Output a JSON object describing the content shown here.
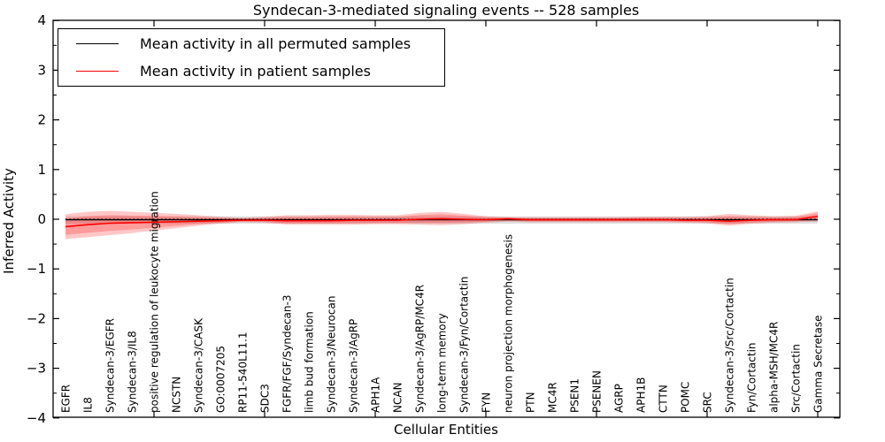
{
  "figure": {
    "title": "Syndecan-3-mediated signaling events -- 528 samples",
    "xlabel": "Cellular Entities",
    "ylabel": "Inferred Activity"
  },
  "legend": {
    "entries": [
      {
        "label": "Mean activity in all permuted samples",
        "color": "#000000"
      },
      {
        "label": "Mean activity in patient samples",
        "color": "#ff0000"
      }
    ]
  },
  "chart_data": {
    "type": "line",
    "title": "Syndecan-3-mediated signaling events -- 528 samples",
    "xlabel": "Cellular Entities",
    "ylabel": "Inferred Activity",
    "ylim": [
      -4,
      4
    ],
    "yticks": [
      4,
      3,
      2,
      1,
      0,
      -1,
      -2,
      -3,
      -4
    ],
    "grid": false,
    "legend_position": "upper left",
    "zero_line": 0,
    "categories": [
      "EGFR",
      "IL8",
      "Syndecan-3/EGFR",
      "Syndecan-3/IL8",
      "positive regulation of leukocyte migration",
      "NCSTN",
      "Syndecan-3/CASK",
      "GO:0007205",
      "RP11-540L11.1",
      "SDC3",
      "FGFR/FGF/Syndecan-3",
      "limb bud formation",
      "Syndecan-3/Neurocan",
      "Syndecan-3/AgRP",
      "APH1A",
      "NCAN",
      "Syndecan-3/AgRP/MC4R",
      "long-term memory",
      "Syndecan-3/Fyn/Cortactin",
      "FYN",
      "neuron projection morphogenesis",
      "PTN",
      "MC4R",
      "PSEN1",
      "PSENEN",
      "AGRP",
      "APH1B",
      "CTTN",
      "POMC",
      "SRC",
      "Syndecan-3/Src/Cortactin",
      "Fyn/Cortactin",
      "alpha-MSH/MC4R",
      "Src/Cortactin",
      "Gamma Secretase"
    ],
    "series": [
      {
        "name": "Mean activity in all permuted samples",
        "color": "#000000",
        "band_color": "rgba(0,0,0,0.12)",
        "values": [
          -0.01,
          -0.01,
          -0.01,
          -0.01,
          -0.01,
          -0.01,
          -0.01,
          -0.01,
          -0.01,
          -0.01,
          -0.01,
          -0.01,
          -0.01,
          -0.01,
          -0.01,
          -0.01,
          -0.01,
          -0.01,
          -0.01,
          -0.01,
          -0.01,
          -0.01,
          -0.01,
          -0.01,
          -0.01,
          -0.01,
          -0.01,
          -0.01,
          -0.01,
          -0.01,
          -0.01,
          -0.01,
          -0.01,
          -0.01,
          -0.01
        ],
        "band_upper": [
          0.06,
          0.06,
          0.06,
          0.06,
          0.06,
          0.06,
          0.06,
          0.06,
          0.06,
          0.06,
          0.06,
          0.06,
          0.06,
          0.06,
          0.06,
          0.06,
          0.06,
          0.06,
          0.06,
          0.06,
          0.06,
          0.06,
          0.06,
          0.06,
          0.06,
          0.06,
          0.06,
          0.06,
          0.06,
          0.06,
          0.06,
          0.06,
          0.06,
          0.06,
          0.06
        ],
        "band_lower": [
          -0.09,
          -0.09,
          -0.09,
          -0.09,
          -0.09,
          -0.09,
          -0.09,
          -0.09,
          -0.09,
          -0.09,
          -0.09,
          -0.09,
          -0.09,
          -0.09,
          -0.09,
          -0.09,
          -0.09,
          -0.09,
          -0.09,
          -0.09,
          -0.09,
          -0.09,
          -0.09,
          -0.09,
          -0.09,
          -0.09,
          -0.09,
          -0.09,
          -0.09,
          -0.09,
          -0.09,
          -0.09,
          -0.09,
          -0.09,
          -0.09
        ]
      },
      {
        "name": "Mean activity in patient samples",
        "color": "#ff0000",
        "band_color": "rgba(255,0,0,0.22)",
        "values": [
          -0.15,
          -0.11,
          -0.08,
          -0.07,
          -0.06,
          -0.05,
          -0.04,
          -0.03,
          -0.02,
          -0.02,
          -0.03,
          -0.03,
          -0.03,
          -0.02,
          -0.02,
          -0.02,
          0.0,
          0.01,
          0.0,
          -0.01,
          0.01,
          -0.01,
          -0.01,
          -0.01,
          -0.01,
          -0.01,
          -0.01,
          -0.01,
          -0.02,
          -0.02,
          -0.04,
          -0.02,
          -0.01,
          -0.01,
          0.06
        ],
        "band_upper": [
          0.1,
          0.15,
          0.17,
          0.15,
          0.13,
          0.11,
          0.08,
          0.05,
          0.03,
          0.05,
          0.08,
          0.08,
          0.09,
          0.09,
          0.08,
          0.08,
          0.13,
          0.15,
          0.11,
          0.06,
          0.04,
          0.04,
          0.04,
          0.04,
          0.04,
          0.04,
          0.05,
          0.05,
          0.05,
          0.06,
          0.11,
          0.08,
          0.06,
          0.07,
          0.16
        ],
        "band_lower": [
          -0.4,
          -0.36,
          -0.32,
          -0.28,
          -0.23,
          -0.18,
          -0.13,
          -0.09,
          -0.06,
          -0.07,
          -0.11,
          -0.11,
          -0.11,
          -0.11,
          -0.1,
          -0.1,
          -0.11,
          -0.12,
          -0.1,
          -0.07,
          -0.05,
          -0.06,
          -0.06,
          -0.06,
          -0.06,
          -0.06,
          -0.06,
          -0.06,
          -0.07,
          -0.08,
          -0.13,
          -0.09,
          -0.07,
          -0.06,
          -0.05
        ]
      }
    ]
  }
}
